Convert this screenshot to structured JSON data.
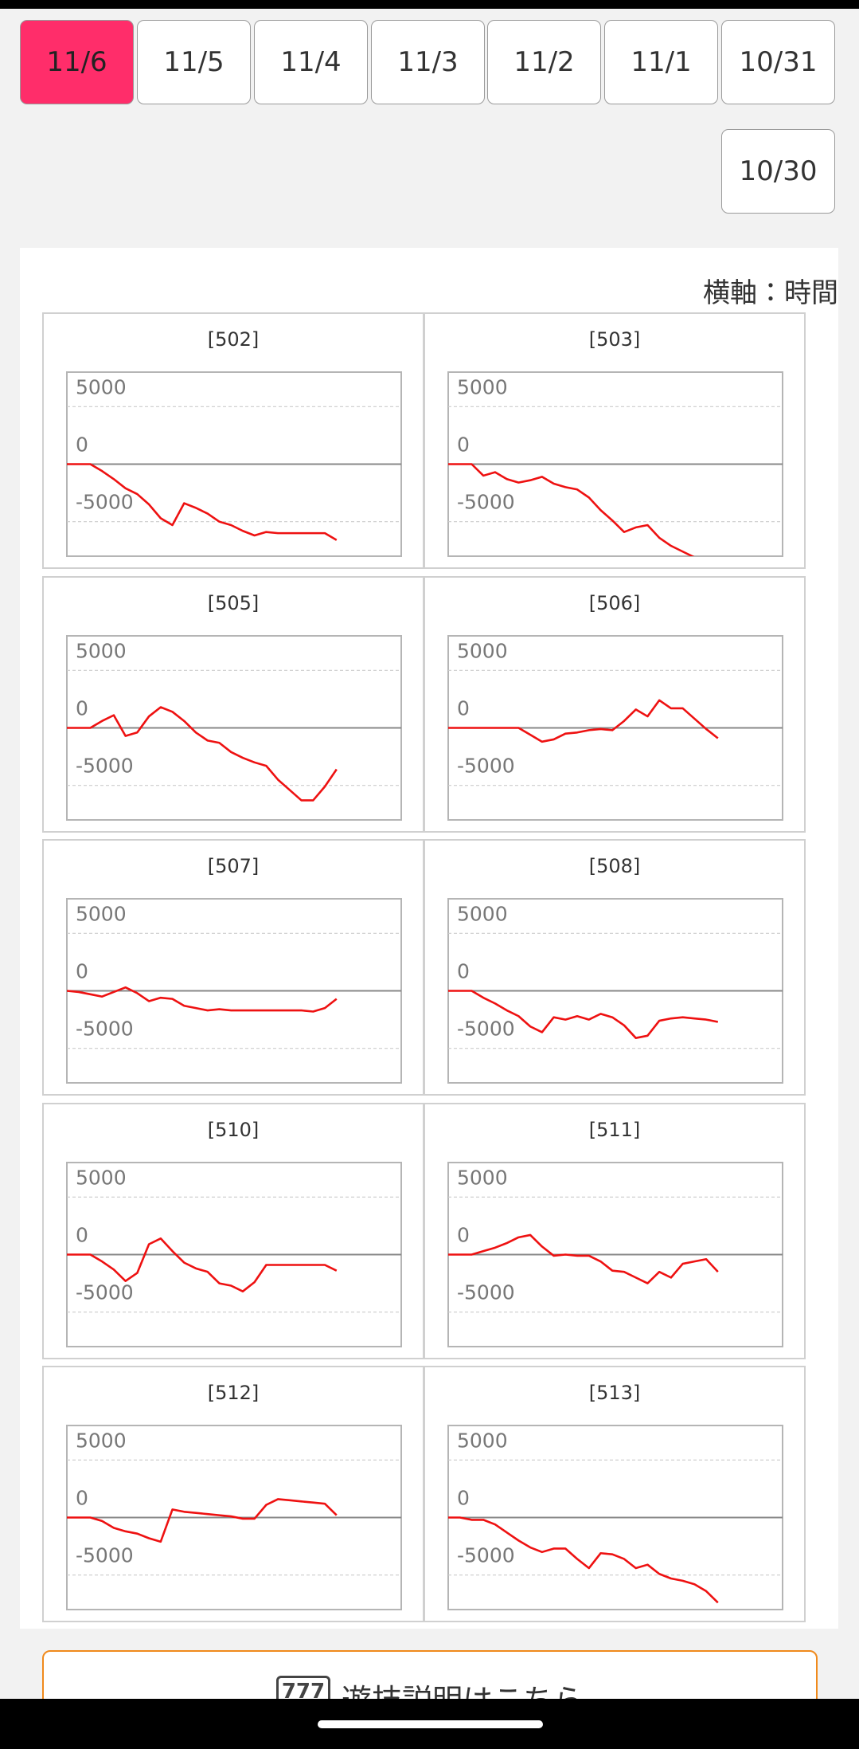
{
  "date_tabs": {
    "items": [
      "11/6",
      "11/5",
      "11/4",
      "11/3",
      "11/2",
      "11/1",
      "10/31",
      "10/30"
    ],
    "active": 0
  },
  "axis_note": "横軸：時間",
  "chart_data": [
    {
      "type": "line",
      "title": "[502]",
      "ylim": [
        -8000,
        8000
      ],
      "yticks": [
        -5000,
        0,
        5000
      ],
      "grid": true,
      "series": [
        {
          "color": "#ee1111",
          "values": [
            0,
            0,
            0,
            -600,
            -1300,
            -2100,
            -2600,
            -3500,
            -4700,
            -5300,
            -3400,
            -3800,
            -4300,
            -5000,
            -5300,
            -5800,
            -6200,
            -5900,
            -6000,
            -6000,
            -6000,
            -6000,
            -6000,
            -6600
          ]
        }
      ]
    },
    {
      "type": "line",
      "title": "[503]",
      "ylim": [
        -8000,
        8000
      ],
      "yticks": [
        -5000,
        0,
        5000
      ],
      "grid": true,
      "series": [
        {
          "color": "#ee1111",
          "values": [
            0,
            0,
            0,
            -1000,
            -700,
            -1300,
            -1600,
            -1400,
            -1100,
            -1700,
            -2000,
            -2200,
            -2900,
            -4000,
            -4900,
            -5900,
            -5500,
            -5300,
            -6400,
            -7100,
            -7600,
            -8100,
            -8300,
            -8400
          ]
        }
      ]
    },
    {
      "type": "line",
      "title": "[505]",
      "ylim": [
        -8000,
        8000
      ],
      "yticks": [
        -5000,
        0,
        5000
      ],
      "grid": true,
      "series": [
        {
          "color": "#ee1111",
          "values": [
            0,
            0,
            0,
            600,
            1100,
            -700,
            -400,
            1000,
            1800,
            1400,
            600,
            -400,
            -1100,
            -1300,
            -2100,
            -2600,
            -3000,
            -3300,
            -4500,
            -5400,
            -6300,
            -6300,
            -5100,
            -3600
          ]
        }
      ]
    },
    {
      "type": "line",
      "title": "[506]",
      "ylim": [
        -8000,
        8000
      ],
      "yticks": [
        -5000,
        0,
        5000
      ],
      "grid": true,
      "series": [
        {
          "color": "#ee1111",
          "values": [
            0,
            0,
            0,
            0,
            0,
            0,
            0,
            -600,
            -1200,
            -1000,
            -500,
            -400,
            -200,
            -100,
            -200,
            600,
            1600,
            1000,
            2400,
            1700,
            1700,
            800,
            -100,
            -900
          ]
        }
      ]
    },
    {
      "type": "line",
      "title": "[507]",
      "ylim": [
        -8000,
        8000
      ],
      "yticks": [
        -5000,
        0,
        5000
      ],
      "grid": true,
      "series": [
        {
          "color": "#ee1111",
          "values": [
            0,
            -100,
            -300,
            -500,
            -100,
            300,
            -200,
            -900,
            -600,
            -700,
            -1300,
            -1500,
            -1700,
            -1600,
            -1700,
            -1700,
            -1700,
            -1700,
            -1700,
            -1700,
            -1700,
            -1800,
            -1500,
            -700
          ]
        }
      ]
    },
    {
      "type": "line",
      "title": "[508]",
      "ylim": [
        -8000,
        8000
      ],
      "yticks": [
        -5000,
        0,
        5000
      ],
      "grid": true,
      "series": [
        {
          "color": "#ee1111",
          "values": [
            0,
            0,
            0,
            -600,
            -1100,
            -1700,
            -2200,
            -3100,
            -3600,
            -2300,
            -2500,
            -2200,
            -2500,
            -2000,
            -2300,
            -3000,
            -4100,
            -3900,
            -2600,
            -2400,
            -2300,
            -2400,
            -2500,
            -2700
          ]
        }
      ]
    },
    {
      "type": "line",
      "title": "[510]",
      "ylim": [
        -8000,
        8000
      ],
      "yticks": [
        -5000,
        0,
        5000
      ],
      "grid": true,
      "series": [
        {
          "color": "#ee1111",
          "values": [
            0,
            0,
            0,
            -600,
            -1300,
            -2300,
            -1600,
            900,
            1400,
            300,
            -700,
            -1200,
            -1500,
            -2500,
            -2700,
            -3200,
            -2400,
            -900,
            -900,
            -900,
            -900,
            -900,
            -900,
            -1400
          ]
        }
      ]
    },
    {
      "type": "line",
      "title": "[511]",
      "ylim": [
        -8000,
        8000
      ],
      "yticks": [
        -5000,
        0,
        5000
      ],
      "grid": true,
      "series": [
        {
          "color": "#ee1111",
          "values": [
            0,
            0,
            0,
            300,
            600,
            1000,
            1500,
            1700,
            700,
            -100,
            0,
            -100,
            -100,
            -600,
            -1400,
            -1500,
            -2000,
            -2500,
            -1500,
            -2000,
            -800,
            -600,
            -400,
            -1500
          ]
        }
      ]
    },
    {
      "type": "line",
      "title": "[512]",
      "ylim": [
        -8000,
        8000
      ],
      "yticks": [
        -5000,
        0,
        5000
      ],
      "grid": true,
      "series": [
        {
          "color": "#ee1111",
          "values": [
            0,
            0,
            0,
            -300,
            -900,
            -1200,
            -1400,
            -1800,
            -2100,
            700,
            500,
            400,
            300,
            200,
            100,
            -100,
            -100,
            1100,
            1600,
            1500,
            1400,
            1300,
            1200,
            200
          ]
        }
      ]
    },
    {
      "type": "line",
      "title": "[513]",
      "ylim": [
        -8000,
        8000
      ],
      "yticks": [
        -5000,
        0,
        5000
      ],
      "grid": true,
      "series": [
        {
          "color": "#ee1111",
          "values": [
            0,
            0,
            -200,
            -200,
            -600,
            -1300,
            -2000,
            -2600,
            -3000,
            -2700,
            -2700,
            -3600,
            -4400,
            -3100,
            -3200,
            -3600,
            -4400,
            -4100,
            -4900,
            -5300,
            -5500,
            -5800,
            -6400,
            -7400
          ]
        }
      ]
    }
  ],
  "footer_button": {
    "icon": "777",
    "label": "遊技説明はこちら"
  }
}
